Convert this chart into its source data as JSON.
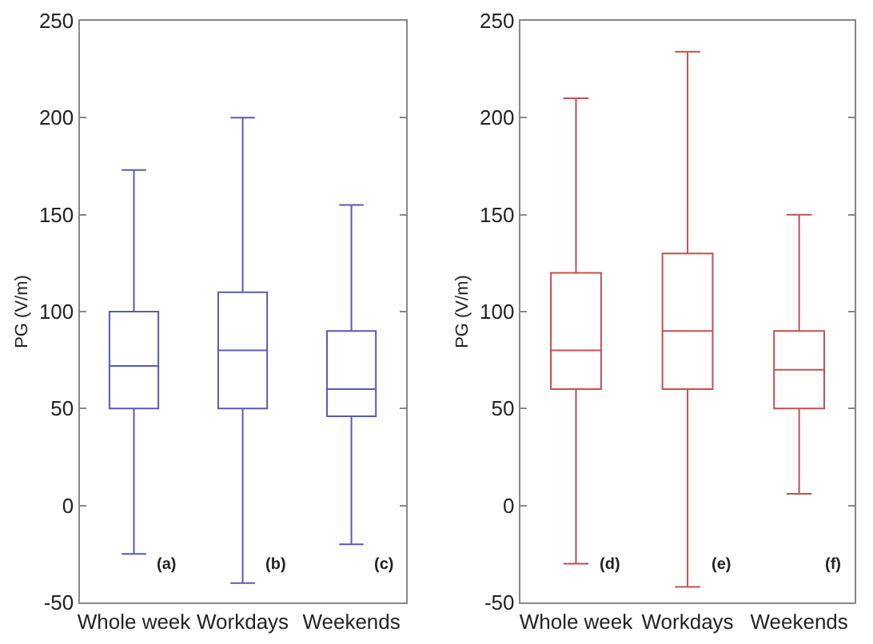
{
  "chart_data": [
    {
      "type": "box",
      "ylabel": "PG (V/m)",
      "categories": [
        "Whole week",
        "Workdays",
        "Weekends"
      ],
      "ylim": [
        -50,
        250
      ],
      "yticks": [
        -50,
        0,
        50,
        100,
        150,
        200,
        250
      ],
      "series": [
        {
          "color": "#5a5ab4",
          "boxes": [
            {
              "low": -25,
              "q1": 50,
              "median": 72,
              "q3": 100,
              "high": 173
            },
            {
              "low": -40,
              "q1": 50,
              "median": 80,
              "q3": 110,
              "high": 200
            },
            {
              "low": -20,
              "q1": 46,
              "median": 60,
              "q3": 90,
              "high": 155
            }
          ]
        }
      ],
      "annotations": [
        "(a)",
        "(b)",
        "(c)"
      ]
    },
    {
      "type": "box",
      "ylabel": "PG (V/m)",
      "categories": [
        "Whole week",
        "Workdays",
        "Weekends"
      ],
      "ylim": [
        -50,
        250
      ],
      "yticks": [
        -50,
        0,
        50,
        100,
        150,
        200,
        250
      ],
      "series": [
        {
          "color": "#c05050",
          "boxes": [
            {
              "low": -30,
              "q1": 60,
              "median": 80,
              "q3": 120,
              "high": 210
            },
            {
              "low": -42,
              "q1": 60,
              "median": 90,
              "q3": 130,
              "high": 234
            },
            {
              "low": 6,
              "q1": 50,
              "median": 70,
              "q3": 90,
              "high": 150
            }
          ]
        }
      ],
      "annotations": [
        "(d)",
        "(e)",
        "(f)"
      ]
    }
  ]
}
